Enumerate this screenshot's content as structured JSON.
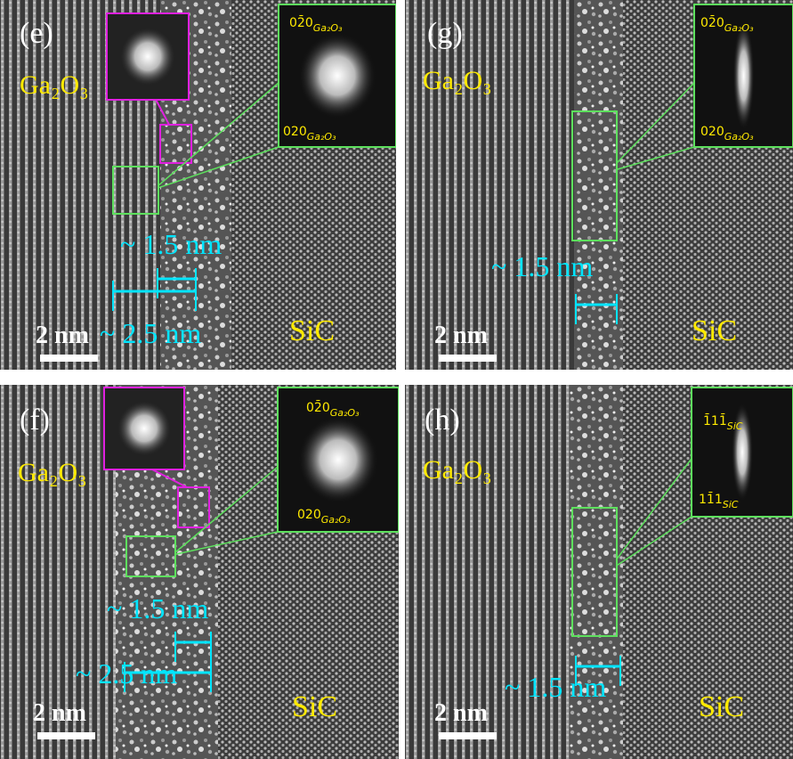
{
  "panels": [
    {
      "label": "(e)",
      "material": "Ga₂O₃",
      "substrate": "SiC",
      "scale_bar": "2 nm",
      "measurements": [
        "~ 1.5 nm",
        "~ 2.5 nm"
      ],
      "inset_labels": [
        {
          "index": "02̄0",
          "subscript": "Ga₂O₃"
        },
        {
          "index": "020",
          "subscript": "Ga₂O₃"
        }
      ]
    },
    {
      "label": "(g)",
      "material": "Ga₂O₃",
      "substrate": "SiC",
      "scale_bar": "2 nm",
      "measurements": [
        "~ 1.5 nm"
      ],
      "inset_labels": [
        {
          "index": "02̄0",
          "subscript": "Ga₂O₃"
        },
        {
          "index": "020",
          "subscript": "Ga₂O₃"
        }
      ]
    },
    {
      "label": "(f)",
      "material": "Ga₂O₃",
      "substrate": "SiC",
      "scale_bar": "2 nm",
      "measurements": [
        "~ 1.5 nm",
        "~ 2.5 nm"
      ],
      "inset_labels": [
        {
          "index": "02̄0",
          "subscript": "Ga₂O₃"
        },
        {
          "index": "020",
          "subscript": "Ga₂O₃"
        }
      ]
    },
    {
      "label": "(h)",
      "material": "Ga₂O₃",
      "substrate": "SiC",
      "scale_bar": "2 nm",
      "measurements": [
        "~ 1.5 nm"
      ],
      "inset_labels": [
        {
          "index": "1̄11̄",
          "subscript": "SiC"
        },
        {
          "index": "11̄1",
          "subscript": "SiC"
        }
      ]
    }
  ]
}
